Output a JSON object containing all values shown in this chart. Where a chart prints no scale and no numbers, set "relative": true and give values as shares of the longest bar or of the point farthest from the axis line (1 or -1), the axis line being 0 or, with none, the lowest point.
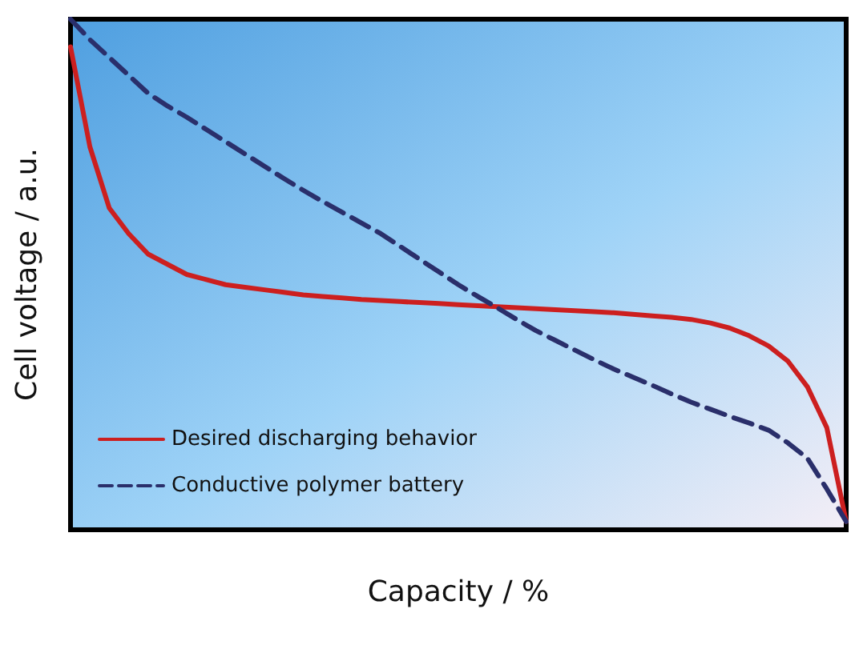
{
  "chart_data": {
    "type": "line",
    "relative": true,
    "xlabel": "Capacity / %",
    "ylabel": "Cell voltage / a.u.",
    "legend": "bottom left",
    "grid": false,
    "marker": "none",
    "categories": [
      null,
      null,
      null,
      null,
      null,
      null,
      null,
      null,
      null,
      null,
      null,
      null,
      null,
      null,
      null,
      null,
      null,
      null,
      null,
      null,
      null,
      null,
      null,
      null,
      null,
      null,
      null,
      null,
      null,
      null,
      null,
      null,
      null,
      null,
      null,
      null,
      null,
      null,
      null,
      null,
      null
    ],
    "series": [
      {
        "name": "Desired discharging behavior",
        "color": "#cc1f1f",
        "line_style": "solid",
        "values": [
          0.946,
          0.75,
          0.63,
          0.58,
          0.54,
          0.52,
          0.5,
          0.49,
          0.48,
          0.475,
          0.47,
          0.465,
          0.46,
          0.457,
          0.454,
          0.451,
          0.449,
          0.447,
          0.445,
          0.443,
          0.441,
          0.439,
          0.437,
          0.435,
          0.433,
          0.431,
          0.429,
          0.427,
          0.425,
          0.422,
          0.419,
          0.416,
          0.412,
          0.405,
          0.395,
          0.38,
          0.36,
          0.33,
          0.28,
          0.2,
          0.016
        ]
      },
      {
        "name": "Conductive polymer battery",
        "color": "#2a2f6b",
        "line_style": "dashed",
        "values": [
          1.0,
          0.96,
          0.925,
          0.89,
          0.855,
          0.83,
          0.808,
          0.784,
          0.76,
          0.736,
          0.712,
          0.688,
          0.665,
          0.643,
          0.622,
          0.601,
          0.58,
          0.555,
          0.53,
          0.505,
          0.48,
          0.457,
          0.435,
          0.412,
          0.39,
          0.371,
          0.352,
          0.333,
          0.315,
          0.299,
          0.283,
          0.266,
          0.25,
          0.236,
          0.222,
          0.209,
          0.195,
          0.17,
          0.14,
          0.08,
          0.016
        ]
      }
    ]
  }
}
